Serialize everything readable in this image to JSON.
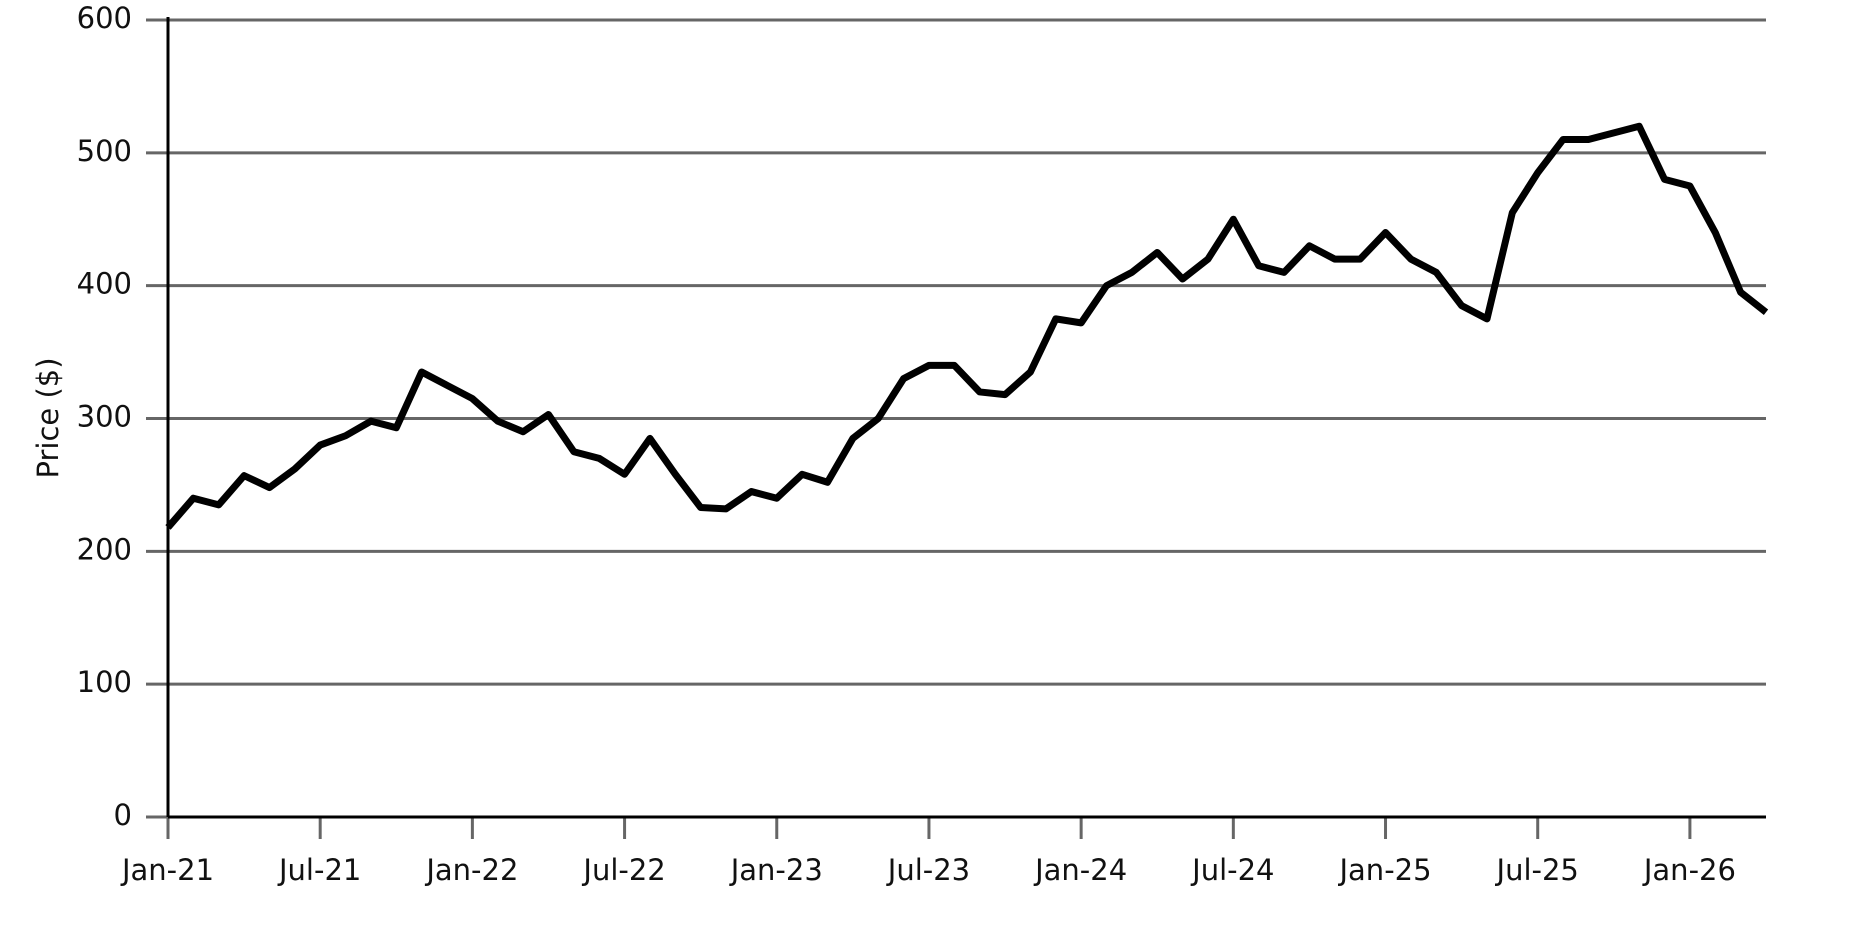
{
  "chart_data": {
    "type": "line",
    "y_label": "Price ($)",
    "x": [
      "2021-01",
      "2021-02",
      "2021-03",
      "2021-04",
      "2021-05",
      "2021-06",
      "2021-07",
      "2021-08",
      "2021-09",
      "2021-10",
      "2021-11",
      "2021-12",
      "2022-01",
      "2022-02",
      "2022-03",
      "2022-04",
      "2022-05",
      "2022-06",
      "2022-07",
      "2022-08",
      "2022-09",
      "2022-10",
      "2022-11",
      "2022-12",
      "2023-01",
      "2023-02",
      "2023-03",
      "2023-04",
      "2023-05",
      "2023-06",
      "2023-07",
      "2023-08",
      "2023-09",
      "2023-10",
      "2023-11",
      "2023-12",
      "2024-01",
      "2024-02",
      "2024-03",
      "2024-04",
      "2024-05",
      "2024-06",
      "2024-07",
      "2024-08",
      "2024-09",
      "2024-10",
      "2024-11",
      "2024-12",
      "2025-01",
      "2025-02",
      "2025-03",
      "2025-04",
      "2025-05",
      "2025-06",
      "2025-07",
      "2025-08",
      "2025-09",
      "2025-10",
      "2025-11",
      "2025-12",
      "2026-01",
      "2026-02",
      "2026-03",
      "2026-04"
    ],
    "values": [
      218,
      240,
      235,
      257,
      248,
      262,
      280,
      287,
      298,
      293,
      335,
      325,
      315,
      298,
      290,
      303,
      275,
      270,
      258,
      285,
      258,
      233,
      232,
      245,
      240,
      258,
      252,
      285,
      300,
      330,
      340,
      340,
      320,
      318,
      335,
      375,
      372,
      400,
      410,
      425,
      405,
      420,
      450,
      415,
      410,
      430,
      420,
      420,
      440,
      420,
      410,
      385,
      375,
      455,
      485,
      510,
      510,
      515,
      520,
      480,
      475,
      440,
      395,
      380
    ],
    "color": "#000000",
    "xlim": [
      "2021-01",
      "2026-04"
    ],
    "xticks": [
      {
        "value": "2021-01",
        "label": "Jan-21"
      },
      {
        "value": "2021-07",
        "label": "Jul-21"
      },
      {
        "value": "2022-01",
        "label": "Jan-22"
      },
      {
        "value": "2022-07",
        "label": "Jul-22"
      },
      {
        "value": "2023-01",
        "label": "Jan-23"
      },
      {
        "value": "2023-07",
        "label": "Jul-23"
      },
      {
        "value": "2024-01",
        "label": "Jan-24"
      },
      {
        "value": "2024-07",
        "label": "Jul-24"
      },
      {
        "value": "2025-01",
        "label": "Jan-25"
      },
      {
        "value": "2025-07",
        "label": "Jul-25"
      },
      {
        "value": "2026-01",
        "label": "Jan-26"
      }
    ],
    "ylim": [
      0,
      600
    ],
    "yticks": [
      0,
      100,
      200,
      300,
      400,
      500,
      600
    ],
    "grid": true
  }
}
